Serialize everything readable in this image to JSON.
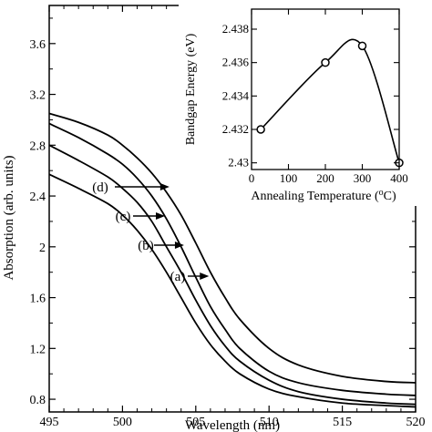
{
  "chart_data": [
    {
      "type": "line",
      "xlabel": "Wavelength (nm)",
      "ylabel": "Absorption (arb. units)",
      "xlim": [
        495,
        520
      ],
      "ylim": [
        0.7,
        3.9
      ],
      "xticks": [
        495,
        500,
        505,
        510,
        515,
        520
      ],
      "yticks": [
        0.8,
        1.2,
        1.6,
        2,
        2.4,
        2.8,
        3.2,
        3.6
      ],
      "yticklabels": [
        "0.8",
        "1.2",
        "1.6",
        "2",
        "2.4",
        "2.8",
        "3.2",
        "3.6"
      ],
      "grid": false,
      "series": [
        {
          "label": "(a)",
          "x": [
            495,
            497,
            499,
            500,
            501,
            502,
            503,
            504,
            505,
            506,
            507,
            508,
            510,
            512,
            515,
            518,
            520
          ],
          "values": [
            3.05,
            2.98,
            2.88,
            2.8,
            2.7,
            2.58,
            2.43,
            2.25,
            2.03,
            1.8,
            1.6,
            1.43,
            1.2,
            1.07,
            0.98,
            0.94,
            0.93
          ]
        },
        {
          "label": "(b)",
          "x": [
            495,
            497,
            499,
            500,
            501,
            502,
            503,
            504,
            505,
            506,
            507,
            508,
            510,
            512,
            515,
            518,
            520
          ],
          "values": [
            2.97,
            2.86,
            2.73,
            2.65,
            2.54,
            2.4,
            2.22,
            2.0,
            1.76,
            1.53,
            1.35,
            1.2,
            1.02,
            0.93,
            0.87,
            0.84,
            0.83
          ]
        },
        {
          "label": "(c)",
          "x": [
            495,
            497,
            499,
            500,
            501,
            502,
            503,
            504,
            505,
            506,
            507,
            508,
            510,
            512,
            515,
            518,
            520
          ],
          "values": [
            2.8,
            2.68,
            2.55,
            2.46,
            2.35,
            2.2,
            2.0,
            1.8,
            1.58,
            1.38,
            1.22,
            1.1,
            0.95,
            0.86,
            0.8,
            0.77,
            0.76
          ]
        },
        {
          "label": "(d)",
          "x": [
            495,
            497,
            499,
            500,
            501,
            502,
            503,
            504,
            505,
            506,
            507,
            508,
            510,
            512,
            515,
            518,
            520
          ],
          "values": [
            2.57,
            2.46,
            2.34,
            2.25,
            2.13,
            1.98,
            1.8,
            1.6,
            1.4,
            1.23,
            1.1,
            1.0,
            0.88,
            0.82,
            0.77,
            0.75,
            0.74
          ]
        }
      ],
      "annotations": [
        {
          "text": "(a)",
          "points_to_series": "(a)"
        },
        {
          "text": "(b)",
          "points_to_series": "(b)"
        },
        {
          "text": "(c)",
          "points_to_series": "(c)"
        },
        {
          "text": "(d)",
          "points_to_series": "(d)"
        }
      ]
    },
    {
      "type": "line",
      "role": "inset",
      "xlabel": "Annealing Temperature (oC)",
      "ylabel": "Bandgap Energy (eV)",
      "xlim": [
        0,
        400
      ],
      "ylim": [
        2.4296,
        2.4392
      ],
      "xticks": [
        0,
        100,
        200,
        300,
        400
      ],
      "yticks": [
        2.43,
        2.432,
        2.434,
        2.436,
        2.438
      ],
      "yticklabels": [
        "2.43",
        "2.432",
        "2.434",
        "2.436",
        "2.438"
      ],
      "markers": "open-circle",
      "series": [
        {
          "x": [
            25,
            200,
            300,
            400
          ],
          "values": [
            2.432,
            2.436,
            2.437,
            2.43
          ]
        }
      ]
    }
  ]
}
